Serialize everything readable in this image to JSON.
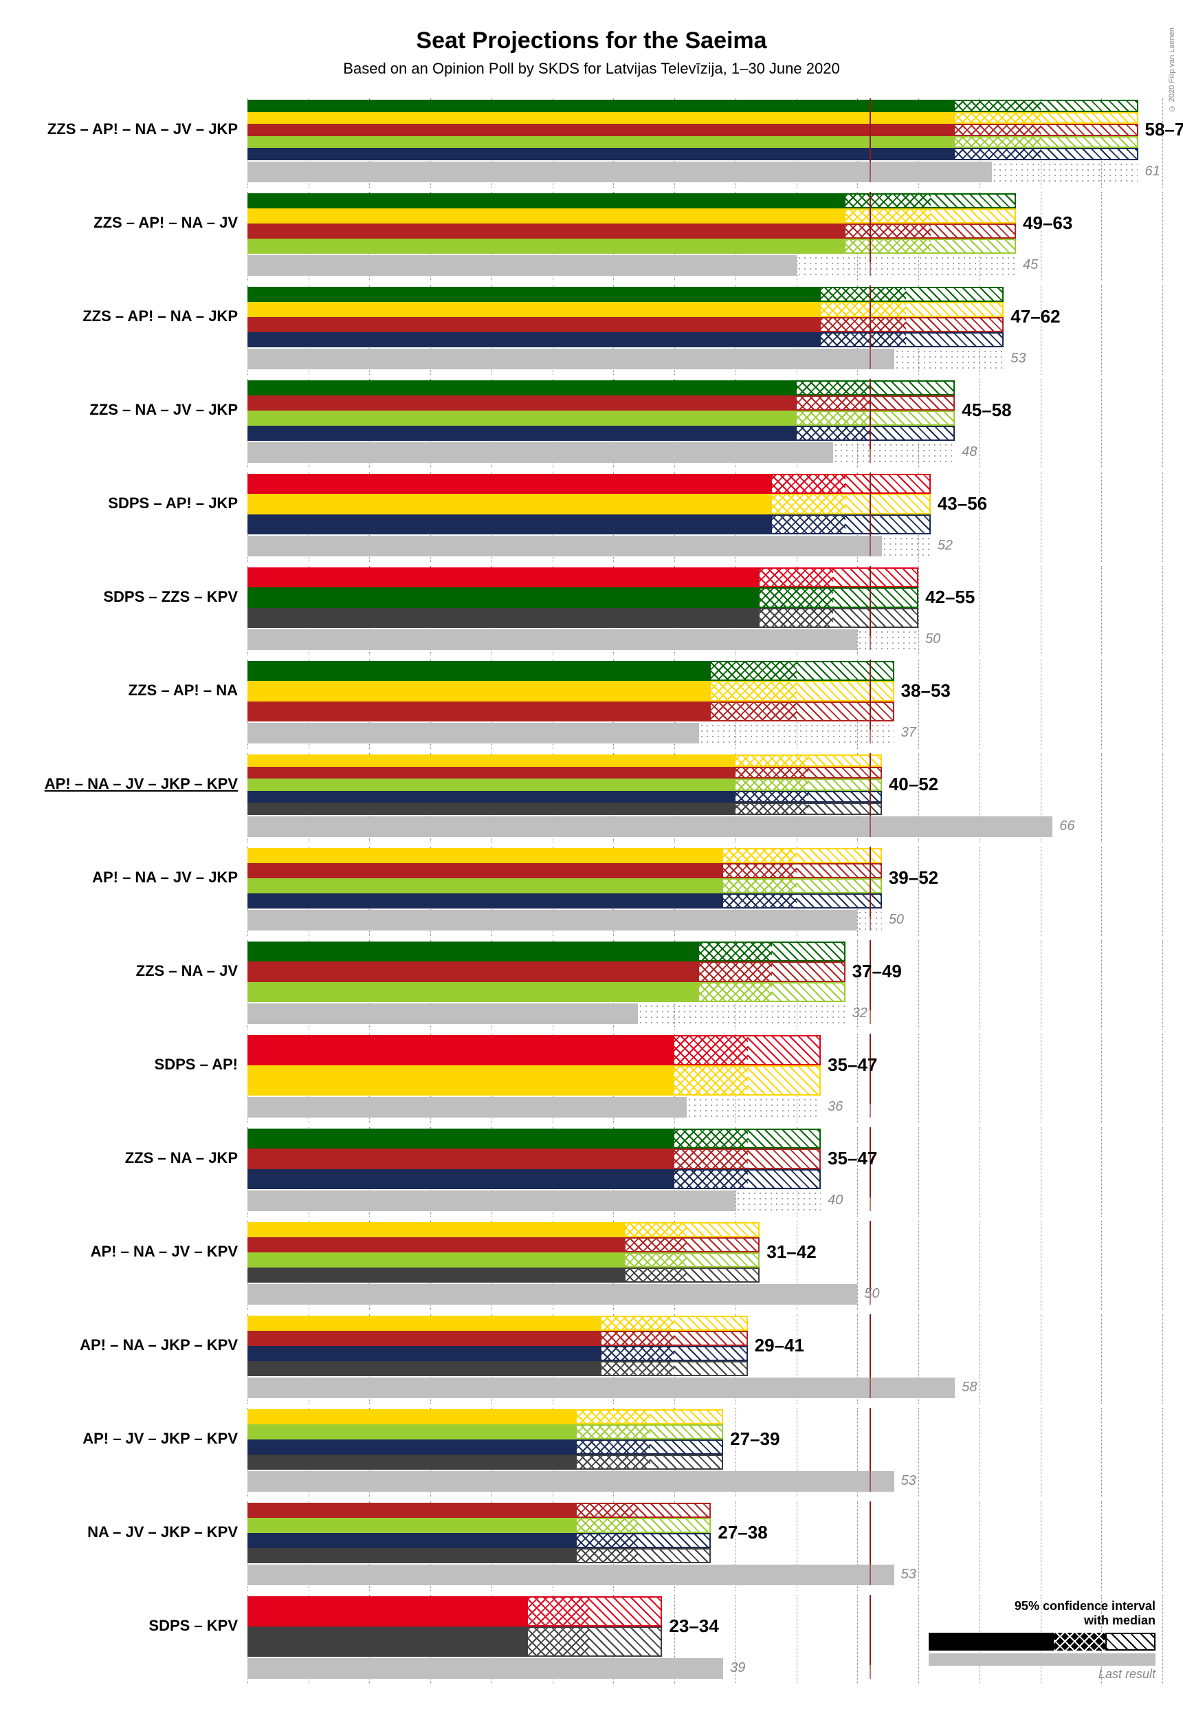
{
  "title": "Seat Projections for the Saeima",
  "subtitle": "Based on an Opinion Poll by SKDS for Latvijas Televīzija, 1–30 June 2020",
  "credit": "© 2020 Filip van Laenen",
  "seats_max": 75,
  "gridline_step": 5,
  "majority_threshold": 51,
  "party_colors": {
    "ZZS": "#006400",
    "AP!": "#ffd700",
    "NA": "#b22222",
    "JV": "#9acd32",
    "JKP": "#1a2b57",
    "SDPS": "#e2001a",
    "KPV": "#404040"
  },
  "label_color_main": "#000000",
  "label_color_last": "#888888",
  "last_bar_color": "#bfbfbf",
  "grid_color": "#888888",
  "majority_color": "#8b1a1a",
  "coalitions": [
    {
      "label": "ZZS – AP! – NA – JV – JKP",
      "parties": [
        "ZZS",
        "AP!",
        "NA",
        "JV",
        "JKP"
      ],
      "low": 58,
      "median": 65,
      "high": 73,
      "last": 61,
      "range_text": "58–73",
      "last_text": "61"
    },
    {
      "label": "ZZS – AP! – NA – JV",
      "parties": [
        "ZZS",
        "AP!",
        "NA",
        "JV"
      ],
      "low": 49,
      "median": 56,
      "high": 63,
      "last": 45,
      "range_text": "49–63",
      "last_text": "45"
    },
    {
      "label": "ZZS – AP! – NA – JKP",
      "parties": [
        "ZZS",
        "AP!",
        "NA",
        "JKP"
      ],
      "low": 47,
      "median": 54,
      "high": 62,
      "last": 53,
      "range_text": "47–62",
      "last_text": "53"
    },
    {
      "label": "ZZS – NA – JV – JKP",
      "parties": [
        "ZZS",
        "NA",
        "JV",
        "JKP"
      ],
      "low": 45,
      "median": 51,
      "high": 58,
      "last": 48,
      "range_text": "45–58",
      "last_text": "48"
    },
    {
      "label": "SDPS – AP! – JKP",
      "parties": [
        "SDPS",
        "AP!",
        "JKP"
      ],
      "low": 43,
      "median": 49,
      "high": 56,
      "last": 52,
      "range_text": "43–56",
      "last_text": "52"
    },
    {
      "label": "SDPS – ZZS – KPV",
      "parties": [
        "SDPS",
        "ZZS",
        "KPV"
      ],
      "low": 42,
      "median": 48,
      "high": 55,
      "last": 50,
      "range_text": "42–55",
      "last_text": "50"
    },
    {
      "label": "ZZS – AP! – NA",
      "parties": [
        "ZZS",
        "AP!",
        "NA"
      ],
      "low": 38,
      "median": 45,
      "high": 53,
      "last": 37,
      "range_text": "38–53",
      "last_text": "37"
    },
    {
      "label": "AP! – NA – JV – JKP – KPV",
      "parties": [
        "AP!",
        "NA",
        "JV",
        "JKP",
        "KPV"
      ],
      "low": 40,
      "median": 46,
      "high": 52,
      "last": 66,
      "range_text": "40–52",
      "last_text": "66",
      "underline": true
    },
    {
      "label": "AP! – NA – JV – JKP",
      "parties": [
        "AP!",
        "NA",
        "JV",
        "JKP"
      ],
      "low": 39,
      "median": 45,
      "high": 52,
      "last": 50,
      "range_text": "39–52",
      "last_text": "50"
    },
    {
      "label": "ZZS – NA – JV",
      "parties": [
        "ZZS",
        "NA",
        "JV"
      ],
      "low": 37,
      "median": 43,
      "high": 49,
      "last": 32,
      "range_text": "37–49",
      "last_text": "32"
    },
    {
      "label": "SDPS – AP!",
      "parties": [
        "SDPS",
        "AP!"
      ],
      "low": 35,
      "median": 41,
      "high": 47,
      "last": 36,
      "range_text": "35–47",
      "last_text": "36"
    },
    {
      "label": "ZZS – NA – JKP",
      "parties": [
        "ZZS",
        "NA",
        "JKP"
      ],
      "low": 35,
      "median": 41,
      "high": 47,
      "last": 40,
      "range_text": "35–47",
      "last_text": "40"
    },
    {
      "label": "AP! – NA – JV – KPV",
      "parties": [
        "AP!",
        "NA",
        "JV",
        "KPV"
      ],
      "low": 31,
      "median": 36,
      "high": 42,
      "last": 50,
      "range_text": "31–42",
      "last_text": "50"
    },
    {
      "label": "AP! – NA – JKP – KPV",
      "parties": [
        "AP!",
        "NA",
        "JKP",
        "KPV"
      ],
      "low": 29,
      "median": 35,
      "high": 41,
      "last": 58,
      "range_text": "29–41",
      "last_text": "58"
    },
    {
      "label": "AP! – JV – JKP – KPV",
      "parties": [
        "AP!",
        "JV",
        "JKP",
        "KPV"
      ],
      "low": 27,
      "median": 33,
      "high": 39,
      "last": 53,
      "range_text": "27–39",
      "last_text": "53"
    },
    {
      "label": "NA – JV – JKP – KPV",
      "parties": [
        "NA",
        "JV",
        "JKP",
        "KPV"
      ],
      "low": 27,
      "median": 32,
      "high": 38,
      "last": 53,
      "range_text": "27–38",
      "last_text": "53"
    },
    {
      "label": "SDPS – KPV",
      "parties": [
        "SDPS",
        "KPV"
      ],
      "low": 23,
      "median": 28,
      "high": 34,
      "last": 39,
      "range_text": "23–34",
      "last_text": "39"
    }
  ],
  "legend": {
    "title_line1": "95% confidence interval",
    "title_line2": "with median",
    "last_label": "Last result"
  }
}
